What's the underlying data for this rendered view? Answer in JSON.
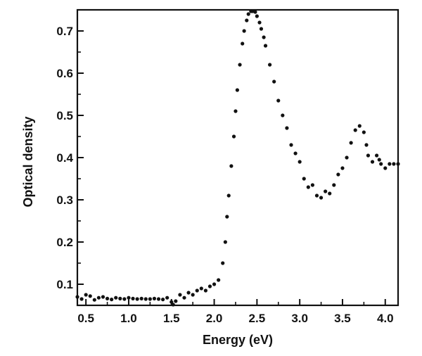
{
  "chart_data": {
    "type": "scatter",
    "xlabel": "Energy (eV)",
    "ylabel": "Optical density",
    "xlim": [
      0.4,
      4.15
    ],
    "ylim": [
      0.05,
      0.75
    ],
    "grid": false,
    "legend": "none",
    "x_ticks": [
      0.5,
      1.0,
      1.5,
      2.0,
      2.5,
      3.0,
      3.5,
      4.0
    ],
    "x_tick_labels": [
      "0.5",
      "1.0",
      "1.5",
      "2.0",
      "2.5",
      "3.0",
      "3.5",
      "4.0"
    ],
    "y_ticks": [
      0.1,
      0.2,
      0.3,
      0.4,
      0.5,
      0.6,
      0.7
    ],
    "y_tick_labels": [
      "0.1",
      "0.2",
      "0.3",
      "0.4",
      "0.5",
      "0.6",
      "0.7"
    ],
    "marker_color": "#111111",
    "series": [
      {
        "x": [
          0.4,
          0.45,
          0.5,
          0.55,
          0.6,
          0.65,
          0.7,
          0.75,
          0.8,
          0.85,
          0.9,
          0.95,
          1.0,
          1.05,
          1.1,
          1.15,
          1.2,
          1.25,
          1.3,
          1.35,
          1.4,
          1.45,
          1.5,
          1.52,
          1.55,
          1.6,
          1.65,
          1.7,
          1.75,
          1.8,
          1.85,
          1.9,
          1.95,
          2.0,
          2.05,
          2.1,
          2.13,
          2.15,
          2.17,
          2.2,
          2.23,
          2.25,
          2.27,
          2.3,
          2.33,
          2.35,
          2.38,
          2.4,
          2.43,
          2.45,
          2.48,
          2.5,
          2.53,
          2.55,
          2.58,
          2.6,
          2.65,
          2.7,
          2.75,
          2.8,
          2.85,
          2.9,
          2.95,
          3.0,
          3.05,
          3.1,
          3.15,
          3.2,
          3.25,
          3.3,
          3.35,
          3.4,
          3.45,
          3.5,
          3.55,
          3.6,
          3.65,
          3.7,
          3.75,
          3.78,
          3.8,
          3.85,
          3.9,
          3.93,
          3.95,
          4.0,
          4.05,
          4.1,
          4.15
        ],
        "y": [
          0.07,
          0.065,
          0.075,
          0.072,
          0.063,
          0.068,
          0.07,
          0.066,
          0.064,
          0.068,
          0.066,
          0.065,
          0.068,
          0.066,
          0.065,
          0.066,
          0.065,
          0.065,
          0.066,
          0.065,
          0.064,
          0.068,
          0.058,
          0.05,
          0.06,
          0.075,
          0.068,
          0.08,
          0.075,
          0.085,
          0.09,
          0.085,
          0.095,
          0.1,
          0.11,
          0.15,
          0.2,
          0.26,
          0.31,
          0.38,
          0.45,
          0.51,
          0.56,
          0.62,
          0.67,
          0.7,
          0.725,
          0.74,
          0.748,
          0.75,
          0.745,
          0.735,
          0.72,
          0.705,
          0.685,
          0.665,
          0.62,
          0.58,
          0.535,
          0.5,
          0.47,
          0.43,
          0.41,
          0.39,
          0.35,
          0.33,
          0.335,
          0.31,
          0.305,
          0.32,
          0.315,
          0.335,
          0.36,
          0.375,
          0.4,
          0.435,
          0.465,
          0.475,
          0.46,
          0.43,
          0.405,
          0.39,
          0.405,
          0.395,
          0.385,
          0.375,
          0.385,
          0.385,
          0.385
        ]
      }
    ]
  }
}
